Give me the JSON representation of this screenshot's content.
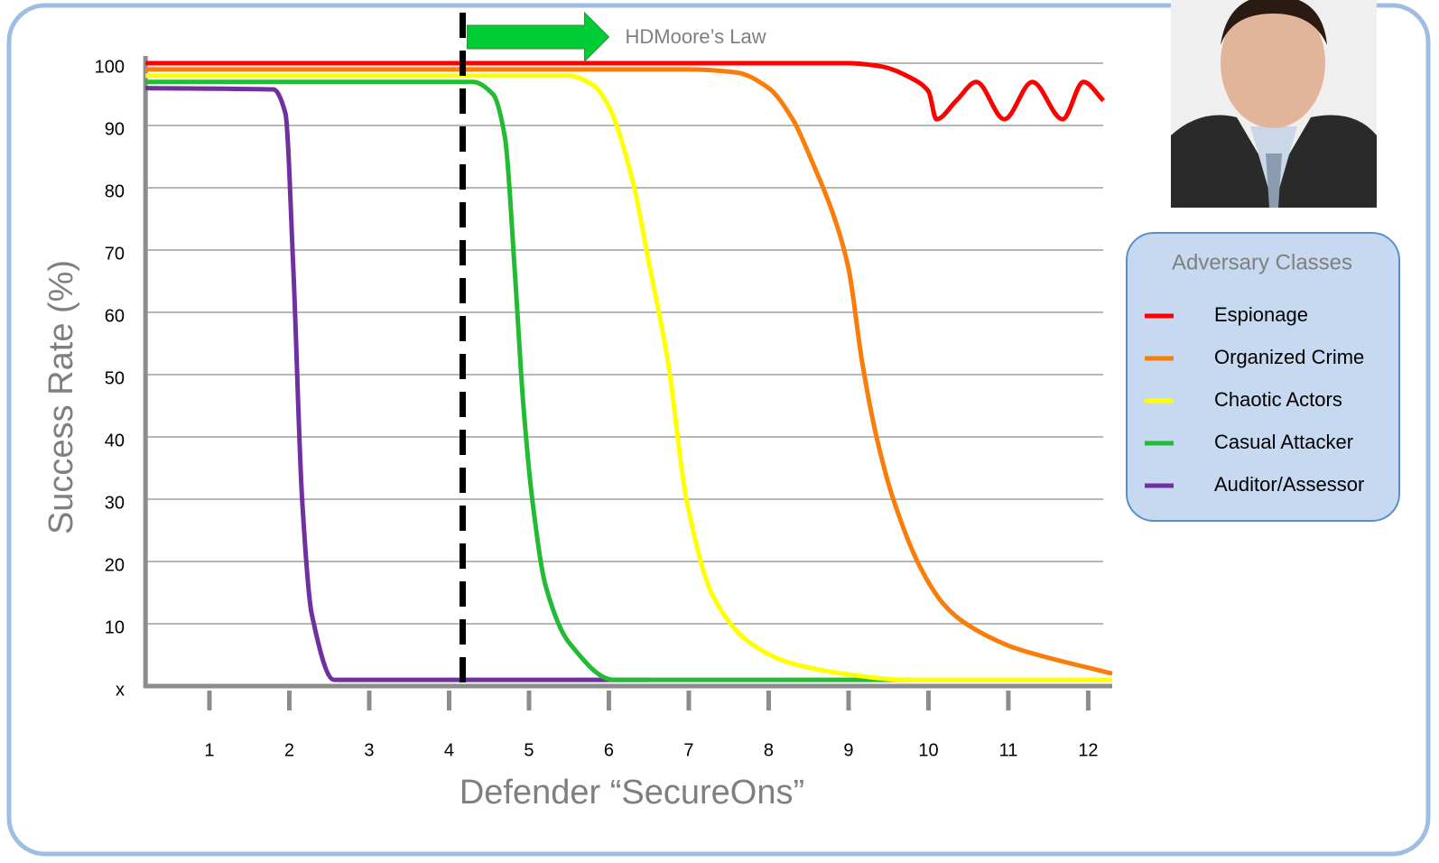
{
  "chart_data": {
    "type": "line",
    "xlabel": "Defender “SecureOns”",
    "ylabel": "Success Rate (%)",
    "xlim": [
      0.2,
      12.3
    ],
    "ylim": [
      0,
      100
    ],
    "xticks": [
      1,
      2,
      3,
      4,
      5,
      6,
      7,
      8,
      9,
      10,
      11,
      12
    ],
    "yticks": [
      {
        "value": 0,
        "label": "x"
      },
      10,
      20,
      30,
      40,
      50,
      60,
      70,
      80,
      90,
      100
    ],
    "grid": true,
    "legend_title": "Adversary Classes",
    "annotation": {
      "text": "HDMoore’s Law",
      "x": 4.17
    },
    "series": [
      {
        "name": "Espionage",
        "color": "#ff0000",
        "x": [
          0.2,
          9.0,
          9.4,
          9.8,
          10.0,
          10.1,
          10.35,
          10.6,
          10.95,
          11.3,
          11.68,
          11.94,
          12.19
        ],
        "values": [
          100,
          100,
          99.5,
          97.5,
          95.5,
          91,
          94,
          97,
          91,
          97,
          91,
          97,
          94
        ]
      },
      {
        "name": "Organized Crime",
        "color": "#fa7d0a",
        "x": [
          0.2,
          7.0,
          7.6,
          8.0,
          8.3,
          8.55,
          8.8,
          9.0,
          9.17,
          9.35,
          9.56,
          9.9,
          10.2,
          10.47,
          11.0,
          11.37,
          12.3
        ],
        "values": [
          99,
          99,
          98.5,
          96,
          91,
          84,
          76,
          67,
          52,
          40,
          30,
          19,
          13,
          10,
          6.5,
          5,
          2
        ]
      },
      {
        "name": "Chaotic Actors",
        "color": "#ffff00",
        "x": [
          0.2,
          5.5,
          5.8,
          6.0,
          6.3,
          6.5,
          6.74,
          6.97,
          7.3,
          7.76,
          8.3,
          9.1,
          9.68,
          12.3
        ],
        "values": [
          98,
          98,
          96.5,
          93,
          81,
          68,
          52,
          30,
          14.5,
          7,
          3.6,
          1.7,
          1,
          1
        ]
      },
      {
        "name": "Casual Attacker",
        "color": "#22bb33",
        "x": [
          0.2,
          4.3,
          4.55,
          4.7,
          4.82,
          4.93,
          5.05,
          5.21,
          5.5,
          6.06,
          9.8
        ],
        "values": [
          97,
          97,
          95,
          88,
          67,
          45,
          29,
          16,
          7,
          1,
          1
        ]
      },
      {
        "name": "Auditor/Assessor",
        "color": "#7030a0",
        "x": [
          0.2,
          1.8,
          1.95,
          2.05,
          2.16,
          2.28,
          2.56,
          6.5
        ],
        "values": [
          96,
          95.8,
          92,
          67,
          30,
          11.6,
          1,
          1
        ]
      }
    ]
  }
}
